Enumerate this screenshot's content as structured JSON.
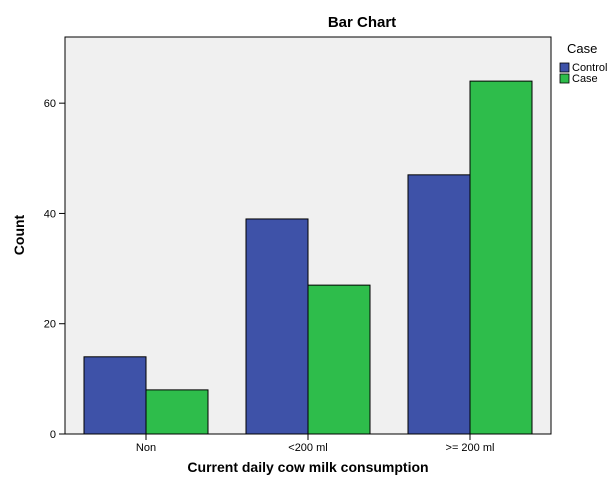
{
  "chart_data": {
    "type": "bar",
    "title": "Bar Chart",
    "xlabel": "Current daily cow milk consumption",
    "ylabel": "Count",
    "categories": [
      "Non",
      "<200 ml",
      ">= 200 ml"
    ],
    "series": [
      {
        "name": "Control",
        "values": [
          14,
          39,
          47
        ],
        "color": "#3e52a8"
      },
      {
        "name": "Case",
        "values": [
          8,
          27,
          64
        ],
        "color": "#2ebd4b"
      }
    ],
    "ylim": [
      0,
      72
    ],
    "yticks": [
      0,
      20,
      40,
      60
    ],
    "legend": {
      "title": "Case",
      "placement": "right"
    },
    "grid": false,
    "plot_background": "#f0f0f0"
  }
}
